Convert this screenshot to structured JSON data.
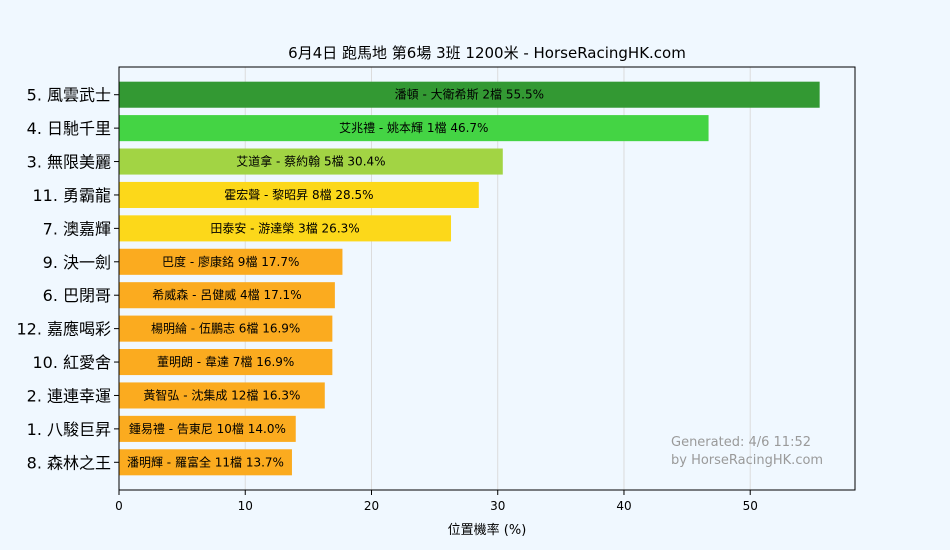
{
  "chart_data": {
    "type": "bar",
    "orientation": "horizontal",
    "title": "6月4日  跑馬地  第6場  3班  1200米 - HorseRacingHK.com",
    "xlabel": "位置機率 (%)",
    "ylabel": "",
    "xlim": [
      0,
      58.3
    ],
    "xticks": [
      0,
      10,
      20,
      30,
      40,
      50
    ],
    "grid": "vertical",
    "categories": [
      "5. 風雲武士",
      "4. 日馳千里",
      "3. 無限美麗",
      "11. 勇霸龍",
      "7. 澳嘉輝",
      "9. 決一劍",
      "6. 巴閉哥",
      "12. 嘉應喝彩",
      "10. 紅愛舍",
      "2. 連連幸運",
      "1. 八駿巨昇",
      "8. 森林之王"
    ],
    "values": [
      55.5,
      46.7,
      30.4,
      28.5,
      26.3,
      17.7,
      17.1,
      16.9,
      16.9,
      16.3,
      14.0,
      13.7
    ],
    "bar_labels": [
      "潘頓 - 大衛希斯 2檔  55.5%",
      "艾兆禮 - 姚本輝 1檔  46.7%",
      "艾道拿 - 蔡約翰 5檔  30.4%",
      "霍宏聲 - 黎昭昇 8檔  28.5%",
      "田泰安 - 游達榮 3檔  26.3%",
      "巴度 - 廖康銘 9檔  17.7%",
      "希威森 - 呂健威 4檔  17.1%",
      "楊明綸 - 伍鵬志 6檔  16.9%",
      "董明朗 - 韋達 7檔  16.9%",
      "黃智弘 - 沈集成 12檔  16.3%",
      "鍾易禮 - 告東尼 10檔  14.0%",
      "潘明輝 - 羅富全 11檔  13.7%"
    ],
    "colors": [
      "#339933",
      "#44d444",
      "#a2d444",
      "#fcd81a",
      "#fcd81a",
      "#fbab1f",
      "#fbab1f",
      "#fbab1f",
      "#fbab1f",
      "#fbab1f",
      "#fbab1f",
      "#fbab1f"
    ],
    "annotation": [
      "Generated: 4/6 11:52",
      "by HorseRacingHK.com"
    ]
  }
}
